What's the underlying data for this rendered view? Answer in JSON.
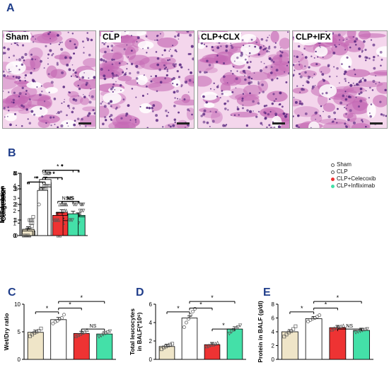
{
  "panel_letters": {
    "a": "A",
    "b": "B",
    "c": "C",
    "d": "D",
    "e": "E"
  },
  "micrographs": [
    {
      "label": "Sham"
    },
    {
      "label": "CLP"
    },
    {
      "label": "CLP+CLX"
    },
    {
      "label": "CLP+IFX"
    }
  ],
  "colors": {
    "sham": "#efe5c8",
    "clp": "#ffffff",
    "celecoxib": "#ee3333",
    "infliximab": "#44e0a8",
    "tissue_bg": "#f4d6ec",
    "tissue_stain": "#c467b3",
    "nuclei": "#5b2a82"
  },
  "legend": [
    "Sham",
    "CLP",
    "CLP+Celecoxib",
    "CLP+Infliximab"
  ],
  "chart_data": [
    {
      "type": "bar",
      "panel": "B",
      "ylabel": "Congestion",
      "ylim": [
        0,
        4
      ],
      "yticks": [
        "0",
        "1",
        "2",
        "3",
        "4"
      ],
      "values": [
        0.3,
        3.4,
        1.5,
        1.3
      ],
      "points": [
        [
          0,
          0,
          0,
          0,
          0.1,
          0.6,
          1.2
        ],
        [
          3.0,
          3.0,
          3.0,
          3.0,
          3.0,
          4.0,
          4.0
        ],
        [
          1.0,
          1.0,
          1.0,
          1.0,
          2.0,
          2.0,
          2.0
        ],
        [
          1.0,
          1.0,
          1.0,
          1.0,
          2.0,
          2.0
        ]
      ],
      "sig": [
        "*",
        "*",
        "*",
        "NS"
      ]
    },
    {
      "type": "bar",
      "panel": "B",
      "ylabel": "Edema",
      "ylim": [
        0,
        4
      ],
      "yticks": [
        "0",
        "1",
        "2",
        "3",
        "4"
      ],
      "values": [
        0.4,
        3.6,
        1.3,
        1.3
      ],
      "points": [
        [
          0,
          0,
          0,
          0,
          1.0,
          1.0
        ],
        [
          3.0,
          3.0,
          4.0,
          4.0,
          4.0,
          4.0
        ],
        [
          1.0,
          1.0,
          1.0,
          1.0,
          2.0,
          2.0
        ],
        [
          1.0,
          1.0,
          1.0,
          1.0,
          2.0,
          2.0
        ]
      ],
      "sig": [
        "*",
        "*",
        "*",
        "NS"
      ]
    },
    {
      "type": "bar",
      "panel": "B",
      "ylabel": "Inflammation",
      "ylim": [
        0,
        5
      ],
      "yticks": [
        "0",
        "1",
        "2",
        "3",
        "4",
        "5"
      ],
      "values": [
        0.5,
        3.9,
        1.2,
        1.5
      ],
      "points": [
        [
          0,
          0,
          0,
          0,
          1.0,
          1.0
        ],
        [
          3.0,
          3.0,
          4.0,
          4.0,
          4.0,
          4.0,
          4.0
        ],
        [
          0,
          0,
          1.0,
          1.0,
          2.0,
          2.0
        ],
        [
          1.0,
          1.0,
          1.0,
          2.0,
          2.0,
          2.0
        ]
      ],
      "sig": [
        "*",
        "*",
        "*",
        "NS"
      ]
    },
    {
      "type": "bar",
      "panel": "B",
      "ylabel": "Hemorrhage",
      "ylim": [
        0,
        4
      ],
      "yticks": [
        "0",
        "1",
        "2",
        "3",
        "4"
      ],
      "values": [
        0.3,
        2.9,
        1.3,
        1.4
      ],
      "points": [
        [
          0,
          0,
          0,
          0,
          1.0,
          1.0
        ],
        [
          2.0,
          3.0,
          3.0,
          3.0,
          3.0,
          3.0
        ],
        [
          1.0,
          1.0,
          1.0,
          1.0,
          2.0,
          2.0
        ],
        [
          1.0,
          1.0,
          1.0,
          2.0,
          2.0,
          2.0
        ]
      ],
      "sig": [
        "*",
        "*",
        "*",
        "NS"
      ]
    },
    {
      "type": "bar",
      "panel": "C",
      "ylabel": "Wet/Dry ratio",
      "ylim": [
        0,
        10
      ],
      "yticks": [
        "0",
        "5",
        "10"
      ],
      "values": [
        4.9,
        7.2,
        4.7,
        4.6
      ],
      "points": [
        [
          4.2,
          4.5,
          4.8,
          5.0,
          5.2,
          5.6
        ],
        [
          6.5,
          6.8,
          7.0,
          7.3,
          7.5,
          8.1
        ],
        [
          4.2,
          4.4,
          4.6,
          4.8,
          5.0,
          5.3
        ],
        [
          4.1,
          4.3,
          4.5,
          4.7,
          4.9,
          5.1
        ]
      ],
      "sig": [
        "*",
        "*",
        "*",
        "NS"
      ]
    },
    {
      "type": "bar",
      "panel": "D",
      "ylabel": "Total leucocytes in BALF(*10⁶)",
      "ylim": [
        0,
        6
      ],
      "yticks": [
        "0",
        "2",
        "4",
        "6"
      ],
      "values": [
        1.4,
        4.5,
        1.6,
        3.3
      ],
      "points": [
        [
          1.1,
          1.3,
          1.4,
          1.5,
          1.6,
          1.7
        ],
        [
          3.5,
          4.0,
          4.4,
          4.8,
          5.2,
          5.5
        ],
        [
          1.4,
          1.5,
          1.6,
          1.6,
          1.7,
          1.8
        ],
        [
          2.8,
          3.0,
          3.2,
          3.4,
          3.5,
          3.7
        ]
      ],
      "sig": [
        "*",
        "*",
        "*",
        "*"
      ]
    },
    {
      "type": "bar",
      "panel": "E",
      "ylabel": "Protein in BALF (g/dl)",
      "ylim": [
        0,
        8
      ],
      "yticks": [
        "0",
        "2",
        "4",
        "6",
        "8"
      ],
      "values": [
        4.0,
        5.9,
        4.6,
        4.2
      ],
      "points": [
        [
          3.3,
          3.6,
          3.9,
          4.1,
          4.4,
          4.8
        ],
        [
          5.5,
          5.7,
          5.9,
          6.0,
          6.2,
          6.4
        ],
        [
          4.3,
          4.5,
          4.6,
          4.7,
          4.8,
          4.9
        ],
        [
          3.9,
          4.0,
          4.1,
          4.2,
          4.3,
          4.4
        ]
      ],
      "sig": [
        "*",
        "*",
        "*",
        "NS"
      ]
    }
  ]
}
